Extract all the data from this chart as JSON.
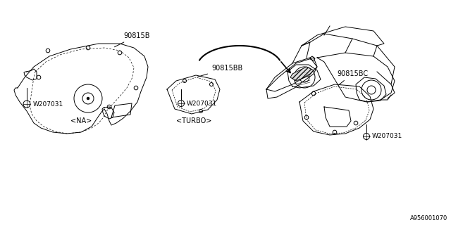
{
  "bg_color": "#ffffff",
  "line_color": "#000000",
  "part_labels": {
    "main_insulator": "90815B",
    "turbo_small": "90815BB",
    "turbo_large": "90815BC"
  },
  "bolt_label": "W207031",
  "variant_na": "<NA>",
  "variant_turbo": "<TURBO>",
  "diagram_id": "A956001070",
  "lw": 0.7,
  "fs": 6.5
}
